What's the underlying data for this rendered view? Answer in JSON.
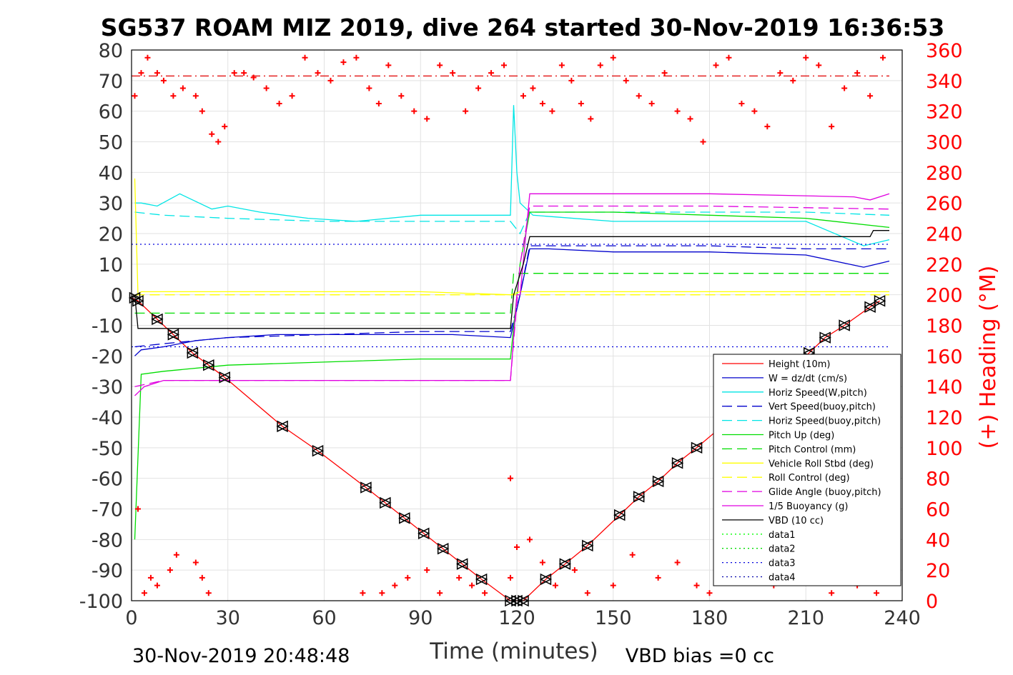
{
  "chart_data": {
    "type": "line",
    "title": "SG537 ROAM MIZ 2019, dive 264 started 30-Nov-2019 16:36:53",
    "xlabel": "Time (minutes)",
    "ylabel": "",
    "y2label": "(+) Heading (°M)",
    "xlim": [
      0,
      240
    ],
    "ylim": [
      -100,
      80
    ],
    "y2lim": [
      0,
      360
    ],
    "xticks": [
      "0",
      "30",
      "60",
      "90",
      "120",
      "150",
      "180",
      "210",
      "240"
    ],
    "yticks": [
      "-100",
      "-90",
      "-80",
      "-70",
      "-60",
      "-50",
      "-40",
      "-30",
      "-20",
      "-10",
      "0",
      "10",
      "20",
      "30",
      "40",
      "50",
      "60",
      "70",
      "80"
    ],
    "y2ticks": [
      "0",
      "20",
      "40",
      "60",
      "80",
      "100",
      "120",
      "140",
      "160",
      "180",
      "200",
      "220",
      "240",
      "260",
      "280",
      "300",
      "320",
      "340",
      "360"
    ],
    "grid": true,
    "legend_position": "lower-right",
    "footer_left": "30-Nov-2019 20:48:48",
    "footer_right": "VBD bias =0 cc",
    "series": [
      {
        "name": "Height (10m)",
        "color": "#ff0000",
        "style": "solid",
        "x": [
          0,
          2,
          8,
          13,
          19,
          24,
          29,
          47,
          58,
          73,
          79,
          85,
          91,
          97,
          103,
          109,
          118,
          119,
          120,
          121,
          122,
          129,
          135,
          142,
          152,
          158,
          164,
          170,
          176,
          211,
          216,
          222,
          230,
          233
        ],
        "y": [
          -1,
          -2,
          -8,
          -13,
          -19,
          -23,
          -27,
          -43,
          -51,
          -63,
          -68,
          -73,
          -78,
          -83,
          -88,
          -93,
          -100,
          -100,
          -100,
          -100,
          -100,
          -93,
          -88,
          -82,
          -72,
          -66,
          -61,
          -55,
          -50,
          -19,
          -14,
          -10,
          -4,
          -2
        ]
      },
      {
        "name": "W = dz/dt (cm/s)",
        "color": "#0000cc",
        "style": "solid",
        "x": [
          1,
          3,
          10,
          20,
          30,
          45,
          60,
          80,
          100,
          118,
          121,
          124,
          130,
          150,
          180,
          210,
          228,
          236
        ],
        "y": [
          -20,
          -18,
          -17,
          -15,
          -14,
          -13,
          -13,
          -13,
          -13,
          -14,
          0,
          15,
          15,
          14,
          14,
          13,
          9,
          11
        ]
      },
      {
        "name": "Horiz Speed(W,pitch)",
        "color": "#00e5e5",
        "style": "solid",
        "x": [
          1,
          3,
          8,
          15,
          25,
          30,
          40,
          55,
          70,
          90,
          105,
          118,
          119,
          120,
          121,
          123,
          125,
          150,
          180,
          210,
          228,
          236
        ],
        "y": [
          30,
          30,
          29,
          33,
          28,
          29,
          27,
          25,
          24,
          26,
          26,
          26,
          62,
          40,
          30,
          28,
          26,
          24,
          24,
          24,
          16,
          18
        ]
      },
      {
        "name": "Vert Speed(buoy,pitch)",
        "color": "#0000cc",
        "style": "dashed",
        "x": [
          1,
          10,
          30,
          60,
          90,
          118,
          121,
          124,
          150,
          180,
          210,
          236
        ],
        "y": [
          -17,
          -16,
          -14,
          -13,
          -12,
          -12,
          0,
          16,
          16,
          16,
          15,
          15
        ]
      },
      {
        "name": "Horiz Speed(buoy,pitch)",
        "color": "#00e5e5",
        "style": "dashed",
        "x": [
          1,
          10,
          30,
          60,
          90,
          118,
          121,
          124,
          150,
          180,
          210,
          236
        ],
        "y": [
          27,
          26,
          25,
          24,
          24,
          24,
          20,
          27,
          27,
          27,
          27,
          26
        ]
      },
      {
        "name": "Pitch Up (deg)",
        "color": "#00dd00",
        "style": "solid",
        "x": [
          1,
          3,
          10,
          30,
          60,
          90,
          118,
          121,
          124,
          150,
          180,
          210,
          236
        ],
        "y": [
          -80,
          -26,
          -25,
          -23,
          -22,
          -21,
          -21,
          10,
          27,
          27,
          26,
          25,
          22
        ]
      },
      {
        "name": "Pitch Control (mm)",
        "color": "#00dd00",
        "style": "dashed",
        "x": [
          1,
          118,
          119,
          236
        ],
        "y": [
          -6,
          -6,
          7,
          7
        ]
      },
      {
        "name": "Vehicle Roll Stbd (deg)",
        "color": "#ffff00",
        "style": "solid",
        "x": [
          1,
          2,
          3,
          30,
          60,
          90,
          118,
          121,
          150,
          180,
          210,
          236
        ],
        "y": [
          38,
          0,
          1,
          1,
          1,
          1,
          0,
          1,
          1,
          1,
          1,
          1
        ]
      },
      {
        "name": "Roll Control (deg)",
        "color": "#ffff00",
        "style": "dashed",
        "x": [
          1,
          236
        ],
        "y": [
          0,
          0
        ]
      },
      {
        "name": "Glide Angle (buoy,pitch)",
        "color": "#e000e0",
        "style": "dashed",
        "x": [
          1,
          10,
          60,
          118,
          121,
          124,
          180,
          236
        ],
        "y": [
          -30,
          -28,
          -28,
          -28,
          10,
          29,
          29,
          28
        ]
      },
      {
        "name": "1/5 Buoyancy (g)",
        "color": "#e000e0",
        "style": "solid",
        "x": [
          1,
          2,
          4,
          10,
          60,
          118,
          120,
          121,
          124,
          180,
          225,
          230,
          236
        ],
        "y": [
          -33,
          -32,
          -30,
          -28,
          -28,
          -28,
          0,
          0,
          33,
          33,
          32,
          31,
          33
        ]
      },
      {
        "name": "VBD (10 cc)",
        "color": "#000000",
        "style": "solid",
        "x": [
          1,
          2,
          118,
          119,
          122,
          124,
          230,
          231,
          236
        ],
        "y": [
          0,
          -11,
          -11,
          0,
          10,
          19,
          19,
          21,
          21
        ]
      },
      {
        "name": "data1",
        "color": "#00ff00",
        "style": "dotted",
        "x": [],
        "y": []
      },
      {
        "name": "data2",
        "color": "#00dd00",
        "style": "dotted",
        "x": [],
        "y": []
      },
      {
        "name": "data3",
        "color": "#0000dd",
        "style": "dotted",
        "x": [
          0,
          236,
          null,
          0,
          236
        ],
        "y": [
          16.5,
          16.5,
          null,
          -17,
          -17
        ]
      },
      {
        "name": "data4",
        "color": "#0000aa",
        "style": "dotted",
        "x": [],
        "y": []
      },
      {
        "name": "",
        "color": "#e00000",
        "style": "dash-dot",
        "axis": "right",
        "x": [
          0,
          236
        ],
        "y": [
          343,
          343
        ]
      }
    ],
    "heading_markers": {
      "color": "#ff0000",
      "marker": "+",
      "axis": "right",
      "x": [
        1,
        3,
        5,
        8,
        10,
        13,
        16,
        20,
        22,
        25,
        27,
        29,
        32,
        35,
        38,
        42,
        46,
        50,
        54,
        58,
        62,
        66,
        70,
        74,
        77,
        80,
        84,
        88,
        92,
        96,
        100,
        104,
        108,
        112,
        116,
        118,
        122,
        125,
        128,
        131,
        134,
        137,
        140,
        143,
        146,
        150,
        154,
        158,
        162,
        166,
        170,
        174,
        178,
        182,
        186,
        190,
        194,
        198,
        202,
        206,
        210,
        214,
        218,
        222,
        226,
        230,
        234,
        2,
        4,
        6,
        8,
        12,
        14,
        20,
        22,
        24,
        72,
        78,
        82,
        86,
        92,
        96,
        102,
        106,
        110,
        118,
        120,
        124,
        128,
        132,
        138,
        142,
        150,
        156,
        164,
        170,
        176,
        180,
        186,
        200,
        218,
        226,
        232
      ],
      "y": [
        330,
        345,
        355,
        345,
        340,
        330,
        335,
        330,
        320,
        305,
        300,
        310,
        345,
        345,
        342,
        335,
        325,
        330,
        355,
        345,
        340,
        352,
        355,
        335,
        325,
        350,
        330,
        320,
        315,
        350,
        345,
        320,
        335,
        345,
        350,
        80,
        330,
        335,
        325,
        320,
        350,
        340,
        325,
        315,
        350,
        355,
        340,
        330,
        325,
        345,
        320,
        315,
        300,
        350,
        355,
        325,
        320,
        310,
        345,
        340,
        355,
        350,
        310,
        335,
        345,
        330,
        355,
        60,
        5,
        15,
        10,
        20,
        30,
        25,
        15,
        5,
        5,
        5,
        10,
        15,
        20,
        5,
        15,
        10,
        5,
        15,
        35,
        40,
        25,
        10,
        20,
        5,
        10,
        30,
        15,
        25,
        10,
        5,
        15,
        10,
        5,
        10,
        5
      ]
    },
    "depth_markers": {
      "color": "#000000",
      "marker": "triangles",
      "x": [
        1,
        2,
        8,
        13,
        19,
        24,
        29,
        47,
        58,
        73,
        79,
        85,
        91,
        97,
        103,
        109,
        118,
        120,
        122,
        129,
        135,
        142,
        152,
        158,
        164,
        170,
        176,
        211,
        216,
        222,
        230,
        233
      ],
      "y": [
        -1,
        -2,
        -8,
        -13,
        -19,
        -23,
        -27,
        -43,
        -51,
        -63,
        -68,
        -73,
        -78,
        -83,
        -88,
        -93,
        -100,
        -100,
        -100,
        -93,
        -88,
        -82,
        -72,
        -66,
        -61,
        -55,
        -50,
        -19,
        -14,
        -10,
        -4,
        -2
      ]
    }
  }
}
